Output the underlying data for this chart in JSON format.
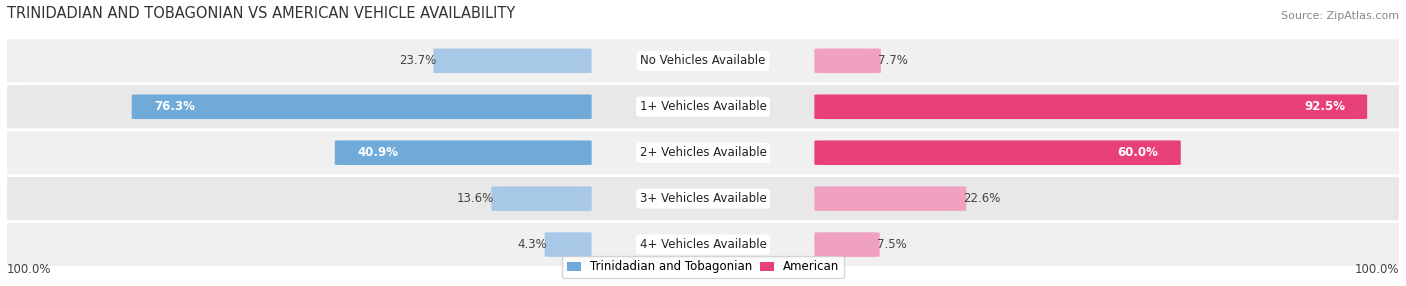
{
  "title": "TRINIDADIAN AND TOBAGONIAN VS AMERICAN VEHICLE AVAILABILITY",
  "source": "Source: ZipAtlas.com",
  "categories": [
    "No Vehicles Available",
    "1+ Vehicles Available",
    "2+ Vehicles Available",
    "3+ Vehicles Available",
    "4+ Vehicles Available"
  ],
  "trinidadian_values": [
    23.7,
    76.3,
    40.9,
    13.6,
    4.3
  ],
  "american_values": [
    7.7,
    92.5,
    60.0,
    22.6,
    7.5
  ],
  "blue_large": "#6faad8",
  "blue_small": "#a8c8e8",
  "pink_large": "#e8407a",
  "pink_small": "#f0a0c0",
  "bg_odd": "#f0f0f0",
  "bg_even": "#e8e8e8",
  "bg_color": "#ffffff",
  "max_value": 100.0,
  "label_fontsize": 8.5,
  "title_fontsize": 10.5,
  "legend_fontsize": 8.5,
  "source_fontsize": 8.0,
  "large_threshold": 30
}
